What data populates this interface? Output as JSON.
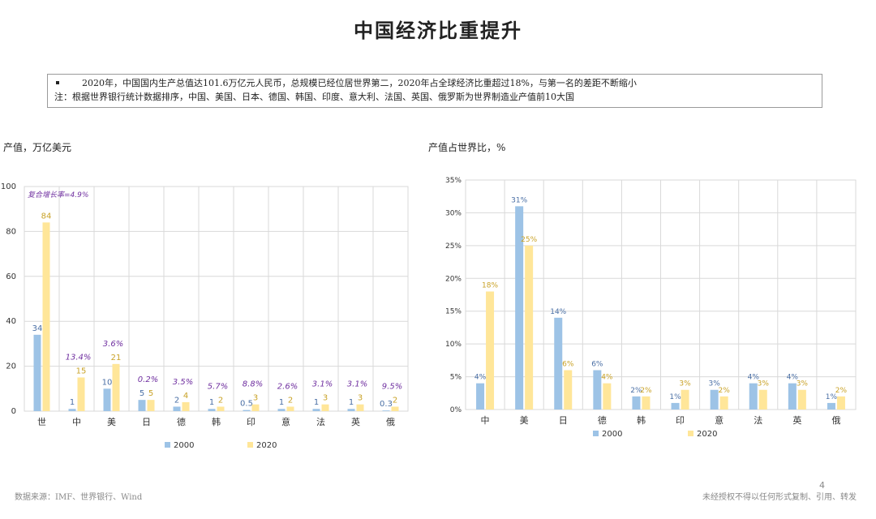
{
  "page": {
    "title": "中国经济比重提升",
    "note_line1": "2020年，中国国内生产总值达101.6万亿元人民币，总规模已经位居世界第二，2020年占全球经济比重超过18%，与第一名的差距不断缩小",
    "note_line2": "注：根据世界银行统计数据排序，中国、美国、日本、德国、韩国、印度、意大利、法国、英国、俄罗斯为世界制造业产值前10大国",
    "page_number": "4",
    "footer_source": "数据来源：IMF、世界银行、Wind",
    "footer_right": "未经授权不得以任何形式复制、引用、转发",
    "colors": {
      "s2000": "#9dc3e6",
      "s2020": "#ffe699",
      "label2000": "#4a6fa5",
      "label2020": "#c9a227",
      "cagr": "#7030a0",
      "grid": "#d9d9d9"
    }
  },
  "chart_data": [
    {
      "type": "bar",
      "title": "产值，万亿美元",
      "categories": [
        "世",
        "中",
        "美",
        "日",
        "德",
        "韩",
        "印",
        "意",
        "法",
        "英",
        "俄"
      ],
      "series": [
        {
          "name": "2000",
          "values": [
            34,
            1,
            10,
            5,
            2,
            1,
            0.5,
            1,
            1,
            1,
            0.3
          ],
          "labels": [
            "34",
            "1",
            "10",
            "5",
            "2",
            "1",
            "0.5",
            "1",
            "1",
            "1",
            "0.3"
          ]
        },
        {
          "name": "2020",
          "values": [
            84,
            15,
            21,
            5,
            4,
            2,
            3,
            2,
            3,
            3,
            2
          ],
          "labels": [
            "84",
            "15",
            "21",
            "5",
            "4",
            "2",
            "3",
            "2",
            "3",
            "3",
            "2"
          ]
        }
      ],
      "growth_labels": [
        "复合增长率=4.9%",
        "13.4%",
        "3.6%",
        "0.2%",
        "3.5%",
        "5.7%",
        "8.8%",
        "2.6%",
        "3.1%",
        "3.1%",
        "9.5%"
      ],
      "ylim": [
        0,
        100
      ],
      "yticks": [
        "0",
        "20",
        "40",
        "60",
        "80",
        "100"
      ],
      "grid": true,
      "legend": "bottom"
    },
    {
      "type": "bar",
      "title": "产值占世界比，%",
      "categories": [
        "中",
        "美",
        "日",
        "德",
        "韩",
        "印",
        "意",
        "法",
        "英",
        "俄"
      ],
      "series": [
        {
          "name": "2000",
          "values": [
            4,
            31,
            14,
            6,
            2,
            1,
            3,
            4,
            4,
            1
          ],
          "labels": [
            "4%",
            "31%",
            "14%",
            "6%",
            "2%",
            "1%",
            "3%",
            "4%",
            "4%",
            "1%"
          ]
        },
        {
          "name": "2020",
          "values": [
            18,
            25,
            6,
            4,
            2,
            3,
            2,
            3,
            3,
            2
          ],
          "labels": [
            "18%",
            "25%",
            "6%",
            "4%",
            "2%",
            "3%",
            "2%",
            "3%",
            "3%",
            "2%"
          ]
        }
      ],
      "ylim": [
        0,
        35
      ],
      "yticks": [
        "0%",
        "5%",
        "10%",
        "15%",
        "20%",
        "25%",
        "30%",
        "35%"
      ],
      "grid": true,
      "legend": "bottom"
    }
  ]
}
